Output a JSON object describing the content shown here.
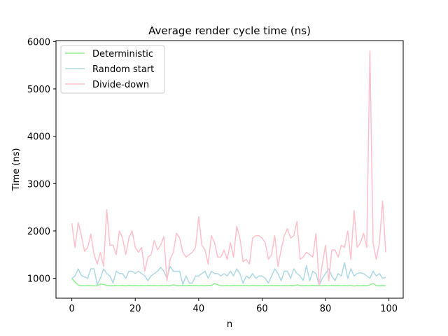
{
  "chart_data": {
    "type": "line",
    "title": "Average render cycle time (ns)",
    "xlabel": "n",
    "ylabel": "Time (ns)",
    "xlim": [
      -5,
      104.5
    ],
    "ylim": [
      580,
      6020
    ],
    "xticks": [
      0,
      20,
      40,
      60,
      80,
      100
    ],
    "yticks": [
      1000,
      2000,
      3000,
      4000,
      5000,
      6000
    ],
    "grid": false,
    "legend_position": "top-left",
    "series": [
      {
        "name": "Deterministic",
        "color": "#90ee90",
        "values": [
          1000,
          920,
          860,
          845,
          845,
          848,
          845,
          842,
          845,
          880,
          870,
          850,
          846,
          845,
          848,
          844,
          848,
          845,
          850,
          846,
          848,
          845,
          848,
          845,
          850,
          846,
          848,
          845,
          848,
          845,
          850,
          846,
          862,
          848,
          845,
          848,
          845,
          850,
          846,
          848,
          845,
          848,
          845,
          852,
          848,
          890,
          862,
          848,
          845,
          848,
          845,
          850,
          846,
          848,
          845,
          848,
          845,
          850,
          846,
          848,
          845,
          848,
          845,
          850,
          846,
          848,
          845,
          848,
          845,
          850,
          846,
          862,
          848,
          845,
          848,
          845,
          850,
          846,
          848,
          845,
          848,
          845,
          850,
          846,
          848,
          845,
          848,
          845,
          850,
          835,
          848,
          845,
          848,
          845,
          862,
          890,
          848,
          845,
          848,
          845
        ]
      },
      {
        "name": "Random start",
        "color": "#add8e6",
        "values": [
          1000,
          1050,
          1200,
          1060,
          1030,
          1000,
          1200,
          1200,
          870,
          1000,
          1200,
          1100,
          1050,
          900,
          1150,
          1100,
          1100,
          1000,
          1150,
          1150,
          1100,
          1150,
          1100,
          1050,
          950,
          1050,
          1100,
          1150,
          1230,
          1150,
          1000,
          1250,
          1150,
          1150,
          1150,
          870,
          1050,
          900,
          900,
          1050,
          1050,
          1100,
          1150,
          1000,
          1150,
          1100,
          1100,
          1050,
          1100,
          1050,
          1150,
          1050,
          1200,
          1100,
          900,
          1050,
          1000,
          1100,
          1000,
          1050,
          1050,
          1000,
          900,
          1050,
          1200,
          1100,
          950,
          1150,
          1150,
          1000,
          1200,
          1100,
          1050,
          950,
          1270,
          950,
          1150,
          1100,
          850,
          1000,
          1100,
          1200,
          1050,
          950,
          1100,
          1050,
          1330,
          1000,
          1200,
          1050,
          1100,
          1120,
          1100,
          1050,
          1000,
          1150,
          1050,
          1100,
          1000,
          1020
        ]
      },
      {
        "name": "Divide-down",
        "color": "#ffc0cb",
        "values": [
          2160,
          1650,
          2180,
          1900,
          1570,
          1650,
          1930,
          1500,
          1300,
          1550,
          1250,
          2450,
          1700,
          1700,
          1500,
          2000,
          1850,
          1500,
          1850,
          2000,
          1650,
          1550,
          1650,
          1150,
          1450,
          1500,
          1800,
          1600,
          1700,
          1880,
          950,
          1400,
          1550,
          1950,
          1850,
          1550,
          1450,
          1500,
          1550,
          1650,
          2300,
          1700,
          1600,
          1300,
          1900,
          1750,
          1450,
          1450,
          1600,
          1400,
          1750,
          1450,
          2100,
          1850,
          1350,
          1400,
          1300,
          1850,
          1900,
          1900,
          1850,
          1750,
          1400,
          1500,
          1900,
          1250,
          1600,
          1900,
          2050,
          1850,
          1900,
          2200,
          1400,
          1450,
          1550,
          1500,
          1450,
          1950,
          850,
          1300,
          1700,
          950,
          1600,
          1600,
          1450,
          1700,
          1650,
          2000,
          1400,
          2430,
          1650,
          1750,
          1950,
          1650,
          5800,
          1750,
          1400,
          1750,
          2630,
          1550
        ]
      }
    ]
  }
}
